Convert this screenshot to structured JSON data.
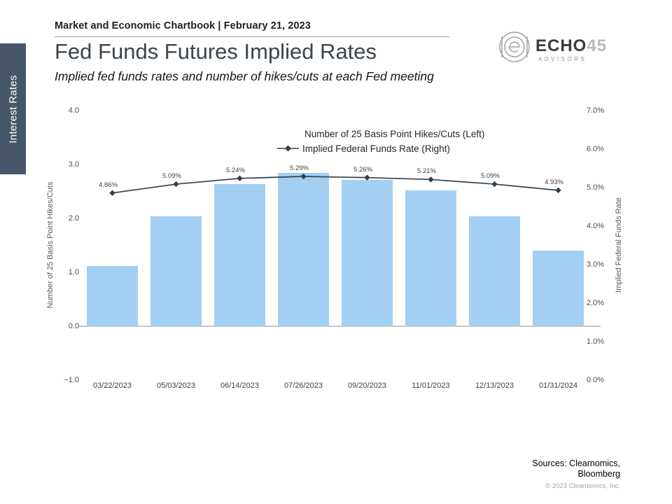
{
  "page": {
    "header": "Market and Economic Chartbook | February 21, 2023",
    "title": "Fed Funds Futures Implied Rates",
    "subtitle": "Implied fed funds rates and number of hikes/cuts at each Fed meeting",
    "sidebar_label": "Interest Rates"
  },
  "logo": {
    "word_primary": "ECHO",
    "word_secondary": "45",
    "tagline": "ADVISORS"
  },
  "legend": {
    "bars_label": "Number of 25 Basis Point Hikes/Cuts (Left)",
    "line_label": "Implied Federal Funds Rate (Right)"
  },
  "footer": {
    "sources_line1": "Sources: Clearnomics,",
    "sources_line2": "Bloomberg",
    "copyright": "© 2023 Clearnomics, Inc."
  },
  "colors": {
    "bar": "#a2cff2",
    "line": "#30404f",
    "sidebar": "#475669"
  },
  "chart_data": {
    "type": "bar+line",
    "title": "Fed Funds Futures Implied Rates",
    "categories": [
      "03/22/2023",
      "05/03/2023",
      "06/14/2023",
      "07/26/2023",
      "09/20/2023",
      "11/01/2023",
      "12/13/2023",
      "01/31/2024"
    ],
    "series": [
      {
        "name": "Number of 25 Basis Point Hikes/Cuts (Left)",
        "type": "bar",
        "axis": "left",
        "values": [
          1.12,
          2.04,
          2.64,
          2.84,
          2.72,
          2.52,
          2.04,
          1.4
        ]
      },
      {
        "name": "Implied Federal Funds Rate (Right)",
        "type": "line",
        "axis": "right",
        "values": [
          4.86,
          5.09,
          5.24,
          5.29,
          5.26,
          5.21,
          5.09,
          4.93
        ],
        "point_labels": [
          "4.86%",
          "5.09%",
          "5.24%",
          "5.29%",
          "5.26%",
          "5.21%",
          "5.09%",
          "4.93%"
        ]
      }
    ],
    "left_axis": {
      "title": "Number of 25 Basis Point Hikes/Cuts",
      "min": -1,
      "max": 4,
      "ticks": [
        {
          "label": "4.0",
          "value": 4
        },
        {
          "label": "3.0",
          "value": 3
        },
        {
          "label": "2.0",
          "value": 2
        },
        {
          "label": "1.0",
          "value": 1
        },
        {
          "label": "0.0",
          "value": 0
        },
        {
          "label": "−1.0",
          "value": -1
        }
      ]
    },
    "right_axis": {
      "title": "Implied Federal Funds Rate",
      "min": 0,
      "max": 7,
      "ticks": [
        {
          "label": "7.0%",
          "value": 7
        },
        {
          "label": "6.0%",
          "value": 6
        },
        {
          "label": "5.0%",
          "value": 5
        },
        {
          "label": "4.0%",
          "value": 4
        },
        {
          "label": "3.0%",
          "value": 3
        },
        {
          "label": "2.0%",
          "value": 2
        },
        {
          "label": "1.0%",
          "value": 1
        },
        {
          "label": "0.0%",
          "value": 0
        }
      ]
    },
    "grid": false,
    "legend_position": "top-center"
  }
}
